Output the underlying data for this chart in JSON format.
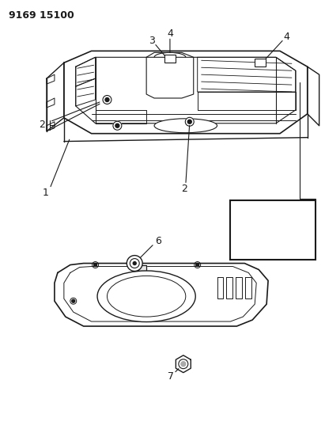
{
  "title_code": "9169 15100",
  "bg_color": "#ffffff",
  "line_color": "#1a1a1a",
  "figsize": [
    4.11,
    5.33
  ],
  "dpi": 100
}
